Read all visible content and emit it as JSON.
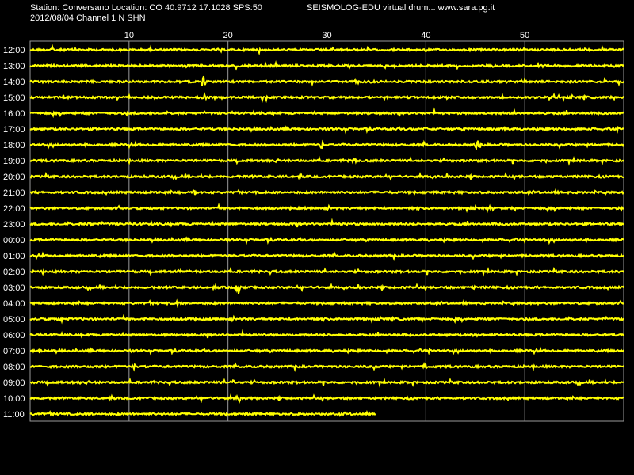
{
  "header": {
    "station_line": "Station: Conversano Location: CO 40.9712 17.1028 SPS:50",
    "product_line": "SEISMOLOG-EDU virtual drum... www.sara.pg.it",
    "date_channel_line": "2012/08/04  Channel 1 N SHN"
  },
  "chart_data": {
    "type": "line",
    "title": "",
    "xlabel": "",
    "ylabel": "",
    "x_range_minutes": [
      0,
      60
    ],
    "x_ticks": [
      10,
      20,
      30,
      40,
      50
    ],
    "grid": true,
    "colors": {
      "background": "#000000",
      "trace": "#ffff00",
      "grid": "#9a9a9a",
      "text": "#ffffff"
    },
    "rows": [
      {
        "label": "12:00",
        "end_minute": 60,
        "events": [
          {
            "minute": 2.2,
            "amp": 5
          }
        ]
      },
      {
        "label": "13:00",
        "end_minute": 60,
        "events": []
      },
      {
        "label": "14:00",
        "end_minute": 60,
        "events": [
          {
            "minute": 17.5,
            "amp": 8
          }
        ]
      },
      {
        "label": "15:00",
        "end_minute": 60,
        "events": [
          {
            "minute": 17.6,
            "amp": 4
          }
        ]
      },
      {
        "label": "16:00",
        "end_minute": 60,
        "events": [
          {
            "minute": 49.0,
            "amp": 3
          }
        ]
      },
      {
        "label": "17:00",
        "end_minute": 60,
        "events": [
          {
            "minute": 40.0,
            "amp": 5
          },
          {
            "minute": 48.0,
            "amp": 4
          }
        ]
      },
      {
        "label": "18:00",
        "end_minute": 60,
        "events": [
          {
            "minute": 29.5,
            "amp": 7
          },
          {
            "minute": 45.2,
            "amp": 8
          }
        ]
      },
      {
        "label": "19:00",
        "end_minute": 60,
        "events": [
          {
            "minute": 32.8,
            "amp": 4
          }
        ]
      },
      {
        "label": "20:00",
        "end_minute": 60,
        "events": []
      },
      {
        "label": "21:00",
        "end_minute": 60,
        "events": [
          {
            "minute": 16.6,
            "amp": 4
          }
        ]
      },
      {
        "label": "22:00",
        "end_minute": 60,
        "events": [
          {
            "minute": 46.6,
            "amp": 3
          }
        ]
      },
      {
        "label": "23:00",
        "end_minute": 60,
        "events": [
          {
            "minute": 6.1,
            "amp": 4
          }
        ]
      },
      {
        "label": "00:00",
        "end_minute": 60,
        "events": []
      },
      {
        "label": "01:00",
        "end_minute": 60,
        "events": []
      },
      {
        "label": "02:00",
        "end_minute": 60,
        "events": [
          {
            "minute": 15.0,
            "amp": 3
          }
        ]
      },
      {
        "label": "03:00",
        "end_minute": 60,
        "events": [
          {
            "minute": 21.0,
            "amp": 12
          },
          {
            "minute": 45.0,
            "amp": 3
          }
        ]
      },
      {
        "label": "04:00",
        "end_minute": 60,
        "events": [
          {
            "minute": 15.0,
            "amp": 3
          }
        ]
      },
      {
        "label": "05:00",
        "end_minute": 60,
        "events": [
          {
            "minute": 3.3,
            "amp": 4
          }
        ]
      },
      {
        "label": "06:00",
        "end_minute": 60,
        "events": [
          {
            "minute": 45.0,
            "amp": 4
          }
        ]
      },
      {
        "label": "07:00",
        "end_minute": 60,
        "events": [
          {
            "minute": 1.0,
            "amp": 4
          }
        ]
      },
      {
        "label": "08:00",
        "end_minute": 60,
        "events": [
          {
            "minute": 10.5,
            "amp": 4
          },
          {
            "minute": 40.0,
            "amp": 5
          }
        ]
      },
      {
        "label": "09:00",
        "end_minute": 60,
        "events": [
          {
            "minute": 20.5,
            "amp": 5
          }
        ]
      },
      {
        "label": "10:00",
        "end_minute": 60,
        "events": [
          {
            "minute": 21.0,
            "amp": 7
          }
        ]
      },
      {
        "label": "11:00",
        "end_minute": 35,
        "events": []
      }
    ]
  }
}
